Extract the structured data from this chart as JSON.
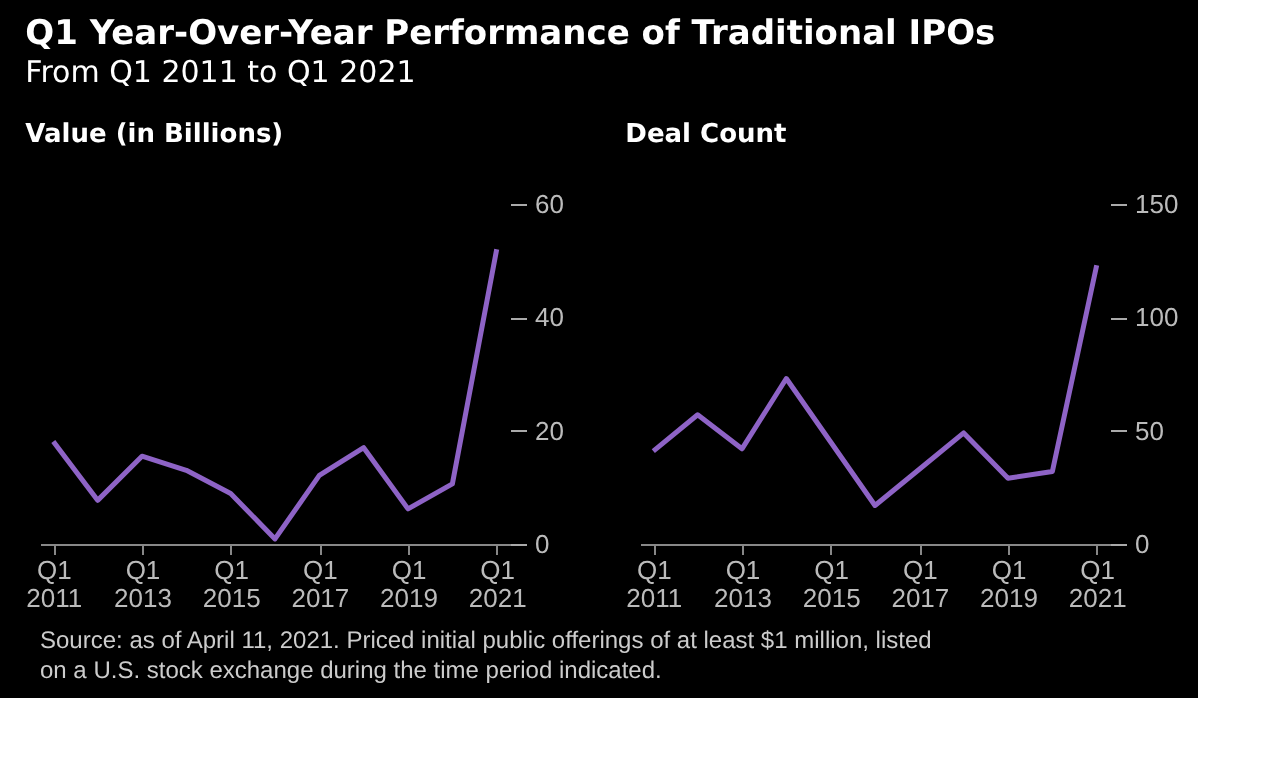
{
  "chart_data": [
    {
      "type": "line",
      "title": "Q1 Year-Over-Year Performance of Traditional IPOs",
      "subtitle": "From Q1 2011 to Q1 2021",
      "ylabel": "Value (in Billions)",
      "categories": [
        "Q1 2011",
        null,
        "Q1 2013",
        null,
        "Q1 2015",
        null,
        "Q1 2017",
        null,
        "Q1 2019",
        null,
        "Q1 2021"
      ],
      "series": [
        {
          "color": "#8e63c6",
          "values": [
            18.1,
            7.7,
            15.5,
            13,
            8.9,
            0.9,
            12.1,
            17,
            6.2,
            10.6,
            52
          ]
        }
      ],
      "ylim": [
        0,
        60
      ],
      "yticks": [
        0,
        20,
        40,
        60
      ],
      "grid": false,
      "annotations": [
        "Source: as of April 11, 2021. Priced initial public offerings of at least $1 million, listed on a U.S. stock exchange during the time period indicated."
      ]
    },
    {
      "type": "line",
      "ylabel": "Deal Count",
      "categories": [
        "Q1 2011",
        null,
        "Q1 2013",
        null,
        "Q1 2015",
        null,
        "Q1 2017",
        null,
        "Q1 2019",
        null,
        "Q1 2021"
      ],
      "series": [
        {
          "color": "#8e63c6",
          "values": [
            41,
            57,
            42,
            73,
            45,
            17,
            33,
            49,
            29,
            32,
            123
          ]
        }
      ],
      "ylim": [
        0,
        150
      ],
      "yticks": [
        0,
        50,
        100,
        150
      ],
      "grid": false
    }
  ]
}
